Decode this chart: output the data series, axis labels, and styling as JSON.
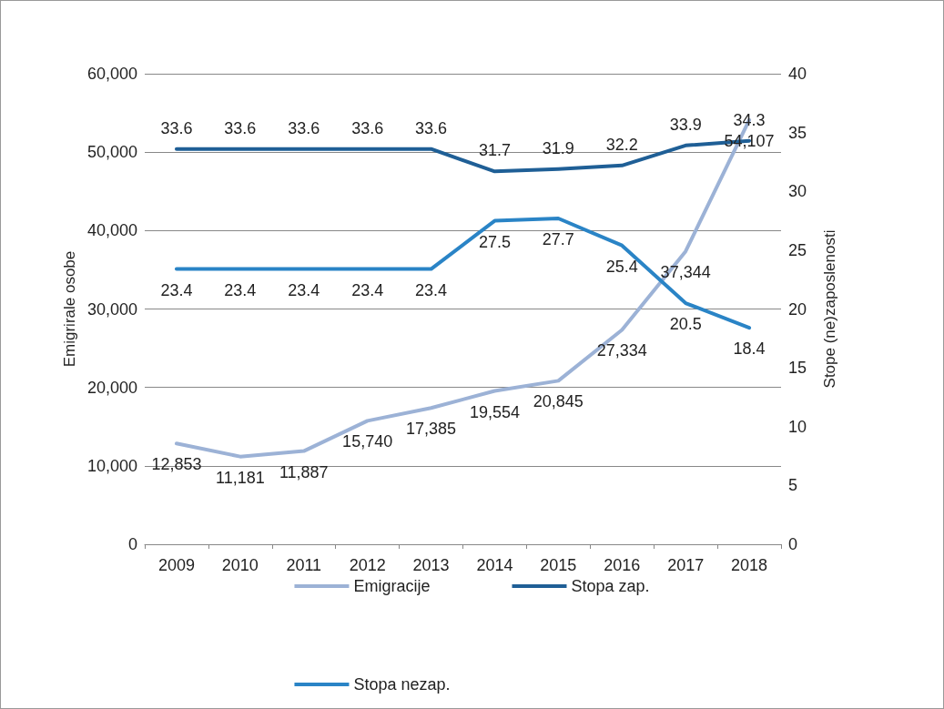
{
  "chart_data": {
    "type": "line",
    "categories": [
      "2009",
      "2010",
      "2011",
      "2012",
      "2013",
      "2014",
      "2015",
      "2016",
      "2017",
      "2018"
    ],
    "ylabel": "Emigrirale osobe",
    "y2label": "Stope (ne)zaposlenosti",
    "ylim": [
      0,
      60000
    ],
    "yticks": [
      {
        "value": 0,
        "label": "0"
      },
      {
        "value": 10000,
        "label": "10,000"
      },
      {
        "value": 20000,
        "label": "20,000"
      },
      {
        "value": 30000,
        "label": "30,000"
      },
      {
        "value": 40000,
        "label": "40,000"
      },
      {
        "value": 50000,
        "label": "50,000"
      },
      {
        "value": 60000,
        "label": "60,000"
      }
    ],
    "y2lim": [
      0,
      40
    ],
    "y2ticks": [
      0,
      5,
      10,
      15,
      20,
      25,
      30,
      35,
      40
    ],
    "grid": "y",
    "legend": "bottom",
    "marker": "none",
    "line_style": "solid",
    "series": [
      {
        "name": "Emigracije",
        "color": "#9cb2d6",
        "values": [
          12853,
          11181,
          11887,
          15740,
          17385,
          19554,
          20845,
          27334,
          37344,
          54107
        ],
        "value_labels": [
          "12,853",
          "11,181",
          "11,887",
          "15,740",
          "17,385",
          "19,554",
          "20,845",
          "27,334",
          "37,344",
          "54,107"
        ]
      },
      {
        "name": "Stopa zap.",
        "color": "#1f5f96",
        "axis": "y2",
        "values": [
          33.6,
          33.6,
          33.6,
          33.6,
          33.6,
          31.7,
          31.9,
          32.2,
          33.9,
          34.3
        ],
        "value_labels": [
          "33.6",
          "33.6",
          "33.6",
          "33.6",
          "33.6",
          "31.7",
          "31.9",
          "32.2",
          "33.9",
          "34.3"
        ]
      },
      {
        "name": "Stopa nezap.",
        "color": "#2a84c6",
        "axis": "y2",
        "values": [
          23.4,
          23.4,
          23.4,
          23.4,
          23.4,
          27.5,
          27.7,
          25.4,
          20.5,
          18.4
        ],
        "value_labels": [
          "23.4",
          "23.4",
          "23.4",
          "23.4",
          "23.4",
          "27.5",
          "27.7",
          "25.4",
          "20.5",
          "18.4"
        ]
      }
    ]
  }
}
